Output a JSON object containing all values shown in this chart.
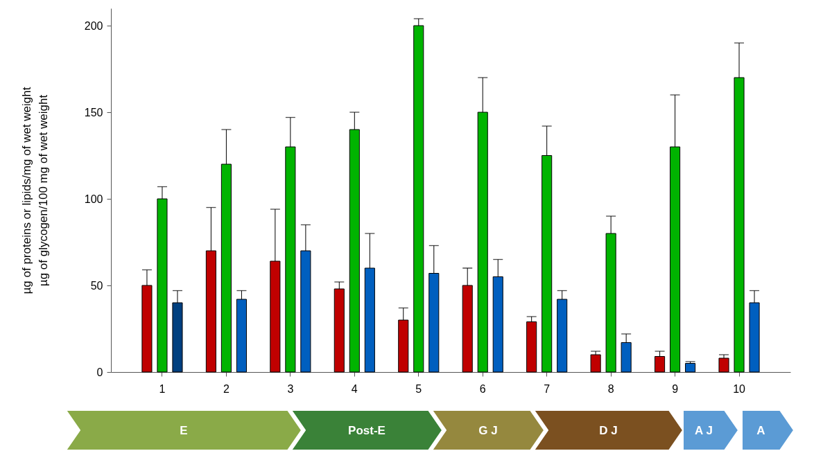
{
  "chart_data": {
    "type": "bar",
    "ylabel": "µg of proteins or lipids/mg of wet weight\nµg of glycogen/100 mg of wet weight",
    "categories": [
      "1",
      "2",
      "3",
      "4",
      "5",
      "6",
      "7",
      "8",
      "9",
      "10"
    ],
    "series": [
      {
        "color": "#c00000",
        "values": [
          50,
          70,
          64,
          48,
          30,
          50,
          29,
          10,
          9,
          8
        ],
        "errors": [
          [
            50,
            59
          ],
          [
            70,
            95
          ],
          [
            64,
            94
          ],
          [
            48,
            52
          ],
          [
            30,
            37
          ],
          [
            50,
            60
          ],
          [
            29,
            32
          ],
          [
            10,
            12
          ],
          [
            9,
            12
          ],
          [
            8,
            10
          ]
        ]
      },
      {
        "color": "#00b400",
        "values": [
          100,
          120,
          130,
          140,
          200,
          150,
          125,
          80,
          130,
          170
        ],
        "errors": [
          [
            100,
            107
          ],
          [
            120,
            140
          ],
          [
            130,
            147
          ],
          [
            140,
            150
          ],
          [
            200,
            204
          ],
          [
            150,
            170
          ],
          [
            125,
            142
          ],
          [
            80,
            90
          ],
          [
            130,
            160
          ],
          [
            170,
            190
          ]
        ]
      },
      {
        "colors": [
          "#003f7f",
          "#005fbf",
          "#005fbf",
          "#005fbf",
          "#005fbf",
          "#005fbf",
          "#005fbf",
          "#005fbf",
          "#005fbf",
          "#005fbf"
        ],
        "values": [
          40,
          42,
          70,
          60,
          57,
          55,
          42,
          17,
          5,
          40
        ],
        "errors": [
          [
            40,
            47
          ],
          [
            42,
            47
          ],
          [
            70,
            85
          ],
          [
            60,
            80
          ],
          [
            57,
            73
          ],
          [
            55,
            65
          ],
          [
            42,
            47
          ],
          [
            17,
            22
          ],
          [
            5,
            6
          ],
          [
            40,
            47
          ]
        ]
      }
    ],
    "ylim": [
      0,
      210
    ],
    "yticks": [
      0,
      50,
      100,
      150,
      200
    ],
    "grid": false,
    "annotations": [
      "E",
      "Post-E",
      "G J",
      "D J",
      "A J",
      "A"
    ]
  }
}
